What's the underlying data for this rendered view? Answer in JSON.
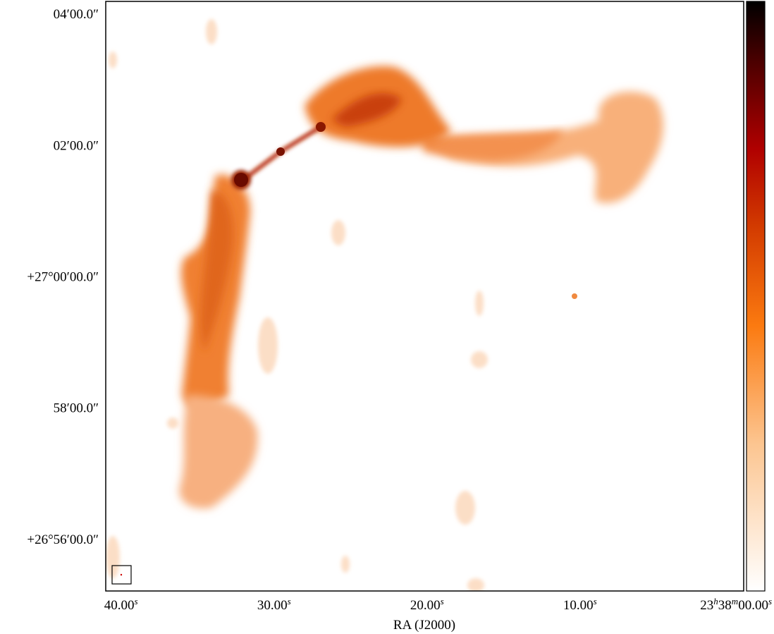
{
  "chart_data": {
    "type": "image",
    "xlabel": "RA (J2000)",
    "xlim": [
      41.0,
      -0.7
    ],
    "xticks": [
      {
        "value": 40,
        "label": [
          "40.00",
          "s"
        ]
      },
      {
        "value": 30,
        "label": [
          "30.00",
          "s"
        ]
      },
      {
        "value": 20,
        "label": [
          "20.00",
          "s"
        ]
      },
      {
        "value": 10,
        "label": [
          "10.00",
          "s"
        ]
      },
      {
        "value": 0,
        "label": [
          "23",
          "h",
          "38",
          "m",
          "00.00",
          "s"
        ]
      }
    ],
    "ylim": [
      26.9202,
      27.0699
    ],
    "yticks": [
      {
        "value": 27.0667,
        "label": "04′00.0″"
      },
      {
        "value": 27.0333,
        "label": "02′00.0″"
      },
      {
        "value": 27.0,
        "label": "+27°00′00.0″"
      },
      {
        "value": 26.9667,
        "label": "58′00.0″"
      },
      {
        "value": 26.9333,
        "label": "+26°56′00.0″"
      }
    ]
  }
}
